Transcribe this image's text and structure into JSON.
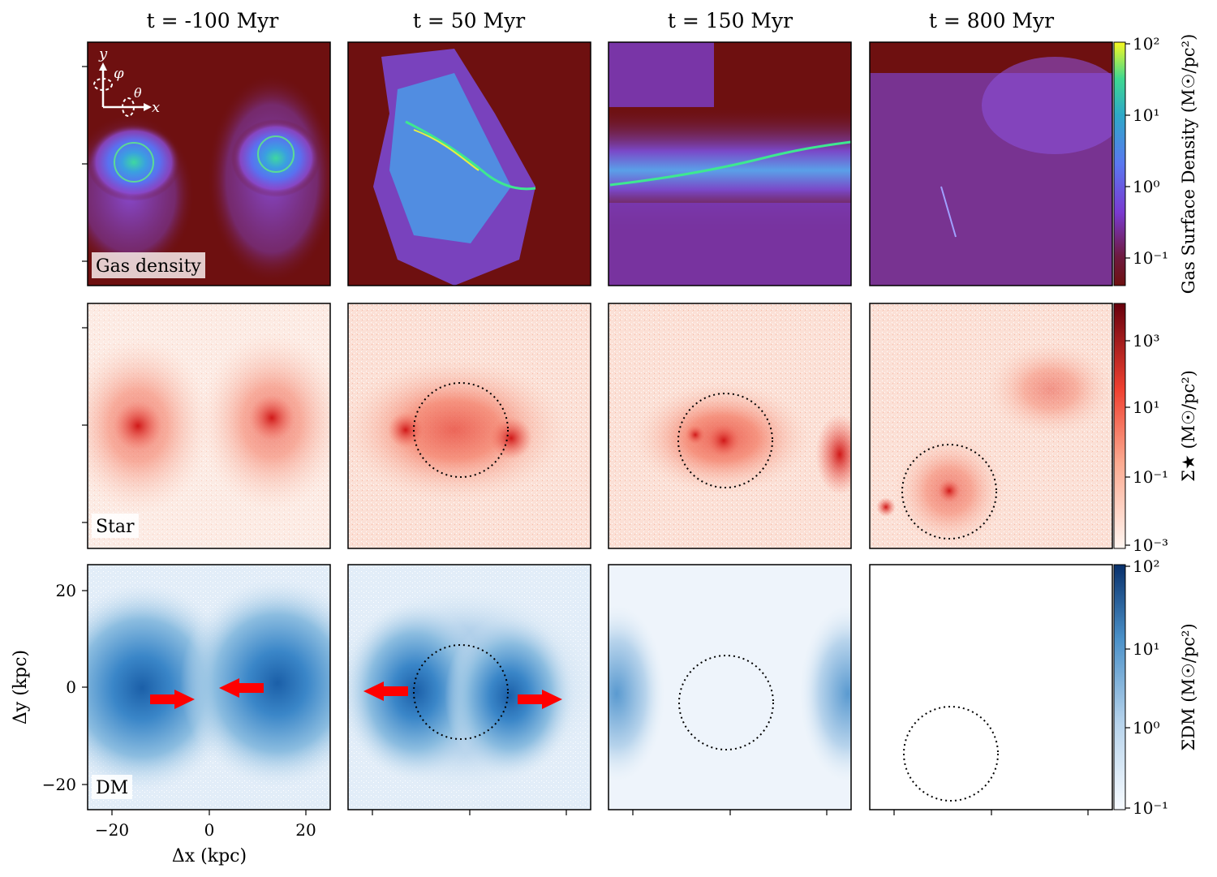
{
  "figure": {
    "columns": [
      {
        "title": "t = -100 Myr"
      },
      {
        "title": "t = 50 Myr"
      },
      {
        "title": "t = 150 Myr"
      },
      {
        "title": "t = 800 Myr"
      }
    ],
    "rows": [
      {
        "panel_label": "Gas density",
        "colormap": "plasma-dark",
        "colorbar_label": "Gas Surface Density (M☉/pc²)",
        "colorbar_ticks": [
          "10²",
          "10¹",
          "10⁰",
          "10⁻¹"
        ]
      },
      {
        "panel_label": "Star",
        "colormap": "reds",
        "colorbar_label": "Σ★ (M☉/pc²)",
        "colorbar_ticks": [
          "10³",
          "10¹",
          "10⁻¹",
          "10⁻³"
        ]
      },
      {
        "panel_label": "DM",
        "colormap": "blues",
        "colorbar_label": "ΣDM (M☉/pc²)",
        "colorbar_ticks": [
          "10²",
          "10¹",
          "10⁰",
          "10⁻¹"
        ]
      }
    ],
    "x_axis": {
      "label": "Δx (kpc)",
      "ticks": [
        "−20",
        "0",
        "20"
      ]
    },
    "y_axis": {
      "label": "Δy (kpc)",
      "ticks": [
        "20",
        "0",
        "−20"
      ]
    },
    "inset_axes": {
      "y": "y",
      "x": "x",
      "phi": "φ",
      "theta": "θ"
    },
    "colors": {
      "dark_bg": "#6e1010",
      "arrow": "#ff0000"
    }
  }
}
